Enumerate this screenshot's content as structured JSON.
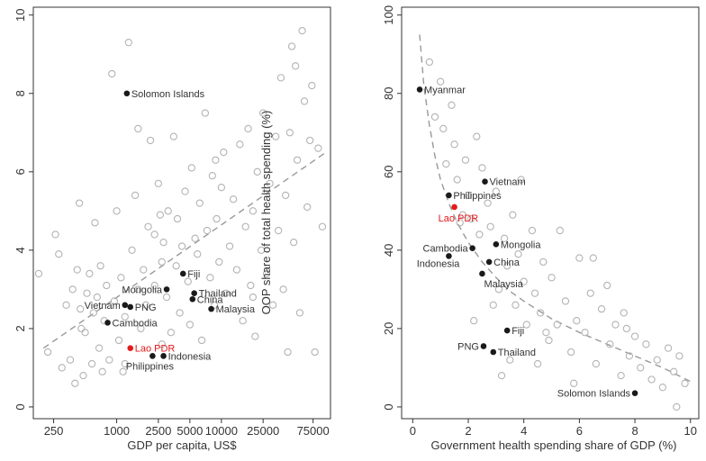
{
  "chart_data": [
    {
      "type": "scatter",
      "title": "",
      "xlabel": "GDP per capita, US$",
      "ylabel": "OOP share of total health spending (%)",
      "x_scale": "log",
      "xlim": [
        160,
        110000
      ],
      "ylim": [
        -0.3,
        10.2
      ],
      "x_ticks": [
        250,
        1000,
        2500,
        5000,
        10000,
        25000,
        75000
      ],
      "x_tick_labels": [
        "250",
        "1000",
        "2500",
        "5000",
        "10000",
        "25000",
        "75000"
      ],
      "y_ticks": [
        0,
        2,
        4,
        6,
        8,
        10
      ],
      "y_tick_labels": [
        "0",
        "2",
        "4",
        "6",
        "8",
        "10"
      ],
      "fit_line": {
        "style": "dashed",
        "points": [
          {
            "x": 200,
            "y": 1.5
          },
          {
            "x": 100000,
            "y": 6.5
          }
        ]
      },
      "highlighted": [
        {
          "label": "Solomon Islands",
          "x": 1250,
          "y": 8.0,
          "label_side": "right"
        },
        {
          "label": "Fiji",
          "x": 4300,
          "y": 3.4,
          "label_side": "right"
        },
        {
          "label": "Mongolia",
          "x": 3000,
          "y": 3.0,
          "label_side": "left"
        },
        {
          "label": "Thailand",
          "x": 5500,
          "y": 2.9,
          "label_side": "right"
        },
        {
          "label": "China",
          "x": 5300,
          "y": 2.75,
          "label_side": "right"
        },
        {
          "label": "Vietnam",
          "x": 1200,
          "y": 2.6,
          "label_side": "left"
        },
        {
          "label": "PNG",
          "x": 1350,
          "y": 2.55,
          "label_side": "right"
        },
        {
          "label": "Malaysia",
          "x": 8000,
          "y": 2.5,
          "label_side": "right"
        },
        {
          "label": "Cambodia",
          "x": 820,
          "y": 2.15,
          "label_side": "right"
        },
        {
          "label": "Indonesia",
          "x": 2800,
          "y": 1.3,
          "label_side": "right"
        },
        {
          "label": "Philippines",
          "x": 2200,
          "y": 1.3,
          "label_side": "below"
        }
      ],
      "lao": {
        "label": "Lao PDR",
        "x": 1350,
        "y": 1.5,
        "color": "#e41a1c"
      },
      "others": [
        [
          180,
          3.4
        ],
        [
          220,
          1.4
        ],
        [
          260,
          4.4
        ],
        [
          280,
          3.9
        ],
        [
          300,
          1.0
        ],
        [
          330,
          2.6
        ],
        [
          360,
          1.2
        ],
        [
          380,
          3.0
        ],
        [
          400,
          0.6
        ],
        [
          420,
          3.5
        ],
        [
          440,
          5.2
        ],
        [
          460,
          2.0
        ],
        [
          480,
          0.8
        ],
        [
          500,
          1.9
        ],
        [
          520,
          2.9
        ],
        [
          550,
          3.4
        ],
        [
          580,
          1.1
        ],
        [
          600,
          2.4
        ],
        [
          620,
          4.7
        ],
        [
          650,
          2.8
        ],
        [
          680,
          1.5
        ],
        [
          700,
          3.6
        ],
        [
          730,
          0.9
        ],
        [
          760,
          2.2
        ],
        [
          800,
          3.1
        ],
        [
          850,
          1.2
        ],
        [
          900,
          8.5
        ],
        [
          950,
          2.7
        ],
        [
          1000,
          5.0
        ],
        [
          1050,
          1.7
        ],
        [
          1100,
          3.3
        ],
        [
          1150,
          0.9
        ],
        [
          1200,
          2.3
        ],
        [
          1300,
          9.3
        ],
        [
          1400,
          4.0
        ],
        [
          1500,
          5.4
        ],
        [
          1600,
          3.0
        ],
        [
          1700,
          2.0
        ],
        [
          1800,
          3.5
        ],
        [
          1900,
          2.6
        ],
        [
          2000,
          4.6
        ],
        [
          2100,
          6.8
        ],
        [
          2300,
          4.4
        ],
        [
          2500,
          5.7
        ],
        [
          2600,
          4.9
        ],
        [
          2700,
          3.7
        ],
        [
          2800,
          4.2
        ],
        [
          3000,
          2.8
        ],
        [
          3100,
          5.0
        ],
        [
          3300,
          1.9
        ],
        [
          3500,
          6.9
        ],
        [
          3700,
          3.6
        ],
        [
          4000,
          2.4
        ],
        [
          4200,
          4.1
        ],
        [
          4500,
          5.5
        ],
        [
          4800,
          3.2
        ],
        [
          5000,
          2.1
        ],
        [
          5200,
          6.1
        ],
        [
          5600,
          4.3
        ],
        [
          5900,
          3.9
        ],
        [
          6200,
          5.2
        ],
        [
          6500,
          1.7
        ],
        [
          7000,
          7.5
        ],
        [
          7300,
          4.5
        ],
        [
          7800,
          3.3
        ],
        [
          8200,
          5.9
        ],
        [
          8600,
          2.6
        ],
        [
          9000,
          4.8
        ],
        [
          9500,
          3.7
        ],
        [
          10000,
          5.6
        ],
        [
          10500,
          6.5
        ],
        [
          11000,
          2.9
        ],
        [
          12000,
          4.1
        ],
        [
          13000,
          5.3
        ],
        [
          14000,
          3.5
        ],
        [
          15000,
          6.7
        ],
        [
          16000,
          2.2
        ],
        [
          17000,
          4.6
        ],
        [
          18000,
          7.1
        ],
        [
          19000,
          3.1
        ],
        [
          20000,
          5.0
        ],
        [
          21000,
          1.8
        ],
        [
          22000,
          6.0
        ],
        [
          24000,
          4.0
        ],
        [
          25000,
          7.5
        ],
        [
          27000,
          3.4
        ],
        [
          29000,
          5.7
        ],
        [
          31000,
          2.6
        ],
        [
          33000,
          6.9
        ],
        [
          35000,
          4.5
        ],
        [
          37000,
          8.4
        ],
        [
          39000,
          3.0
        ],
        [
          41000,
          5.4
        ],
        [
          43000,
          1.4
        ],
        [
          45000,
          7.0
        ],
        [
          47000,
          9.2
        ],
        [
          49000,
          4.2
        ],
        [
          51000,
          8.7
        ],
        [
          53000,
          6.3
        ],
        [
          56000,
          2.4
        ],
        [
          59000,
          9.6
        ],
        [
          62000,
          7.8
        ],
        [
          66000,
          5.1
        ],
        [
          70000,
          6.8
        ],
        [
          73000,
          8.2
        ],
        [
          78000,
          1.4
        ],
        [
          84000,
          6.6
        ],
        [
          92000,
          4.6
        ],
        [
          20000,
          2.8
        ],
        [
          8800,
          6.3
        ],
        [
          3800,
          4.8
        ],
        [
          2300,
          3.1
        ],
        [
          1200,
          1.1
        ],
        [
          450,
          2.5
        ],
        [
          1600,
          7.1
        ],
        [
          2700,
          1.6
        ]
      ]
    },
    {
      "type": "scatter",
      "title": "",
      "xlabel": "Government health spending share of GDP (%)",
      "ylabel": "",
      "xlim": [
        -0.4,
        10.3
      ],
      "ylim": [
        -3,
        102
      ],
      "x_ticks": [
        0,
        2,
        4,
        6,
        8,
        10
      ],
      "x_tick_labels": [
        "0",
        "2",
        "4",
        "6",
        "8",
        "10"
      ],
      "y_ticks": [
        0,
        20,
        40,
        60,
        80,
        100
      ],
      "y_tick_labels": [
        "0",
        "20",
        "40",
        "60",
        "80",
        "100"
      ],
      "fit_curve": {
        "style": "dashed",
        "points": [
          {
            "x": 0.25,
            "y": 95
          },
          {
            "x": 0.4,
            "y": 82
          },
          {
            "x": 0.6,
            "y": 72
          },
          {
            "x": 0.8,
            "y": 64
          },
          {
            "x": 1.0,
            "y": 58
          },
          {
            "x": 1.3,
            "y": 52
          },
          {
            "x": 1.6,
            "y": 47
          },
          {
            "x": 2.0,
            "y": 42
          },
          {
            "x": 2.5,
            "y": 37
          },
          {
            "x": 3.0,
            "y": 33
          },
          {
            "x": 3.5,
            "y": 29.5
          },
          {
            "x": 4.0,
            "y": 27
          },
          {
            "x": 5.0,
            "y": 22.5
          },
          {
            "x": 6.0,
            "y": 19
          },
          {
            "x": 7.0,
            "y": 16
          },
          {
            "x": 8.0,
            "y": 13
          },
          {
            "x": 9.0,
            "y": 10
          },
          {
            "x": 10.0,
            "y": 6.5
          }
        ]
      },
      "highlighted": [
        {
          "label": "Myanmar",
          "x": 0.25,
          "y": 81,
          "label_side": "right"
        },
        {
          "label": "Vietnam",
          "x": 2.6,
          "y": 57.5,
          "label_side": "right"
        },
        {
          "label": "Philippines",
          "x": 1.3,
          "y": 54,
          "label_side": "right"
        },
        {
          "label": "Cambodia",
          "x": 2.15,
          "y": 40.5,
          "label_side": "left"
        },
        {
          "label": "Mongolia",
          "x": 3.0,
          "y": 41.5,
          "label_side": "right"
        },
        {
          "label": "Indonesia",
          "x": 1.3,
          "y": 38.5,
          "label_side": "below-left"
        },
        {
          "label": "China",
          "x": 2.75,
          "y": 37,
          "label_side": "right"
        },
        {
          "label": "Malaysia",
          "x": 2.5,
          "y": 34,
          "label_side": "below-right"
        },
        {
          "label": "Fiji",
          "x": 3.4,
          "y": 19.5,
          "label_side": "right"
        },
        {
          "label": "PNG",
          "x": 2.55,
          "y": 15.5,
          "label_side": "left"
        },
        {
          "label": "Thailand",
          "x": 2.9,
          "y": 14,
          "label_side": "right"
        },
        {
          "label": "Solomon Islands",
          "x": 8.0,
          "y": 3.5,
          "label_side": "left"
        }
      ],
      "lao": {
        "label": "Lao PDR",
        "x": 1.5,
        "y": 51,
        "color": "#e41a1c"
      },
      "others": [
        [
          0.6,
          88
        ],
        [
          0.8,
          74
        ],
        [
          1.0,
          83
        ],
        [
          1.1,
          71
        ],
        [
          1.2,
          62
        ],
        [
          1.4,
          77
        ],
        [
          1.5,
          67
        ],
        [
          1.6,
          58
        ],
        [
          1.7,
          47
        ],
        [
          1.9,
          63
        ],
        [
          2.0,
          54
        ],
        [
          2.1,
          48
        ],
        [
          2.3,
          69
        ],
        [
          2.4,
          44
        ],
        [
          2.5,
          61
        ],
        [
          2.7,
          52
        ],
        [
          2.8,
          46
        ],
        [
          3.0,
          55
        ],
        [
          3.1,
          30
        ],
        [
          3.3,
          43
        ],
        [
          3.4,
          36
        ],
        [
          3.6,
          49
        ],
        [
          3.7,
          26
        ],
        [
          3.8,
          39
        ],
        [
          4.0,
          32
        ],
        [
          4.1,
          21
        ],
        [
          4.3,
          45
        ],
        [
          4.4,
          29
        ],
        [
          4.6,
          24
        ],
        [
          4.7,
          37
        ],
        [
          4.9,
          17
        ],
        [
          5.0,
          33
        ],
        [
          5.2,
          21
        ],
        [
          5.3,
          45
        ],
        [
          5.5,
          27
        ],
        [
          5.7,
          14
        ],
        [
          5.9,
          22
        ],
        [
          6.0,
          38
        ],
        [
          6.2,
          19
        ],
        [
          6.4,
          29
        ],
        [
          6.6,
          11
        ],
        [
          6.8,
          25
        ],
        [
          7.0,
          31
        ],
        [
          7.1,
          16
        ],
        [
          7.3,
          21
        ],
        [
          7.5,
          8
        ],
        [
          7.6,
          24
        ],
        [
          7.8,
          13
        ],
        [
          8.0,
          18
        ],
        [
          8.2,
          10
        ],
        [
          8.4,
          16
        ],
        [
          8.6,
          7
        ],
        [
          8.8,
          12
        ],
        [
          9.0,
          5
        ],
        [
          9.2,
          15
        ],
        [
          9.4,
          9
        ],
        [
          9.6,
          13
        ],
        [
          9.8,
          6
        ],
        [
          3.9,
          58
        ],
        [
          3.2,
          8
        ],
        [
          2.2,
          22
        ],
        [
          1.8,
          49
        ],
        [
          4.5,
          11
        ],
        [
          6.5,
          38
        ],
        [
          7.7,
          20
        ],
        [
          9.5,
          0
        ],
        [
          5.8,
          6
        ],
        [
          3.5,
          12
        ],
        [
          4.8,
          19
        ],
        [
          2.9,
          26
        ]
      ]
    }
  ]
}
